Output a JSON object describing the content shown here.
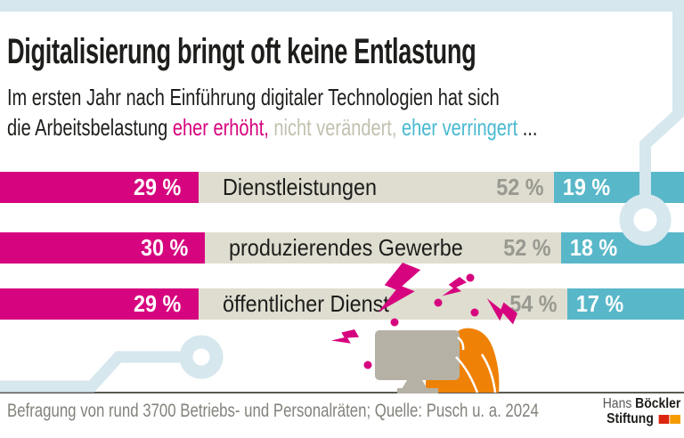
{
  "header": {
    "title": "Digitalisierung bringt oft keine Entlastung",
    "subtitle_line1": "Im ersten Jahr nach Einführung digitaler Technologien hat sich",
    "subtitle_line2_parts": [
      {
        "text": "die Arbeitsbelastung ",
        "colorKey": "ink"
      },
      {
        "text": "eher erhöht,",
        "colorKey": "magenta"
      },
      {
        "text": " ",
        "colorKey": "ink"
      },
      {
        "text": "nicht verändert,",
        "colorKey": "subtitle_gray"
      },
      {
        "text": " ",
        "colorKey": "ink"
      },
      {
        "text": "eher verringert",
        "colorKey": "subtitle_teal"
      },
      {
        "text": " ...",
        "colorKey": "ink"
      }
    ]
  },
  "chart_data": {
    "type": "bar",
    "variant": "horizontal-stacked-100percent",
    "unit": "%",
    "categories": [
      "Dienstleistungen",
      "produzierendes Gewerbe",
      "öffentlicher Dienst"
    ],
    "series": [
      {
        "name": "eher erhöht",
        "colorKey": "magenta",
        "values": [
          29,
          30,
          29
        ]
      },
      {
        "name": "nicht verändert",
        "colorKey": "beige",
        "values": [
          52,
          52,
          54
        ]
      },
      {
        "name": "eher verringert",
        "colorKey": "teal",
        "values": [
          19,
          18,
          17
        ]
      }
    ],
    "value_label_format": "{v} %",
    "legend_position": "inline-in-subtitle",
    "title": "Digitalisierung bringt oft keine Entlastung"
  },
  "footer": {
    "source": "Befragung von rund 3700 Betriebs- und Personalräten; Quelle: Pusch u. a. 2024"
  },
  "logo": {
    "line1_regular": "Hans ",
    "line1_bold": "Böckler",
    "line2_bold": "Stiftung"
  },
  "illustration": {
    "elements": [
      "monitor-icon",
      "stressed-person-icon",
      "lightning-bolt-icon",
      "spark-dot",
      "circuit-trace-decoration"
    ]
  },
  "colors": {
    "magenta": "#d6047e",
    "beige": "#dfddd0",
    "teal": "#58b7c9",
    "subtitle_gray": "#c2c1b0",
    "subtitle_teal": "#48b9d1",
    "gray_value": "#9a9991",
    "ink": "#1d1d1b",
    "light_blue": "#d6e7ee",
    "orange": "#ef8106",
    "monitor_gray": "#b6b1a5",
    "footer_gray": "#83827b",
    "logo_red": "#dc250e",
    "logo_orange": "#f49b00"
  }
}
